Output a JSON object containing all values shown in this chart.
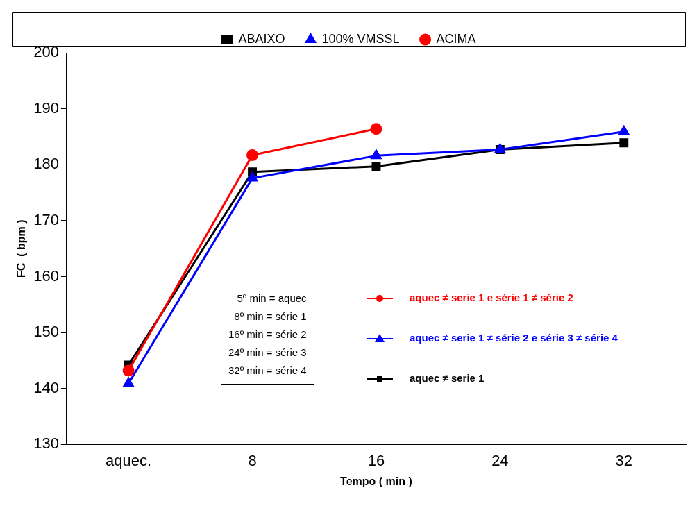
{
  "chart_data": {
    "type": "line",
    "xlabel": "Tempo ( min )",
    "ylabel": "FC  ( bpm )",
    "categories": [
      "aquec.",
      "8",
      "16",
      "24",
      "32"
    ],
    "series": [
      {
        "name": "ABAIXO",
        "color": "#000000",
        "marker": "square",
        "values": [
          144.2,
          178.7,
          179.7,
          182.7,
          183.9
        ]
      },
      {
        "name": "100% VMSSL",
        "color": "#0000ff",
        "marker": "triangle",
        "values": [
          140.9,
          177.6,
          181.6,
          182.7,
          185.9
        ]
      },
      {
        "name": "ACIMA",
        "color": "#ff0000",
        "marker": "circle",
        "values": [
          143.2,
          181.7,
          186.4,
          null,
          null
        ]
      }
    ],
    "ylim": [
      130,
      200
    ],
    "yticks": [
      130,
      140,
      150,
      160,
      170,
      180,
      190,
      200
    ],
    "grid": false,
    "legend": "top",
    "line_style": "solid",
    "annotations": [
      "5º min = aquec",
      "8º min = série 1",
      "16º min = série 2",
      "24º min = série 3",
      "32º min = série 4",
      "aquec ≠ serie 1 e série 1 ≠ série 2",
      "aquec ≠ serie 1 ≠ série 2 e série 3 ≠ série 4",
      "aquec ≠ serie 1"
    ]
  }
}
